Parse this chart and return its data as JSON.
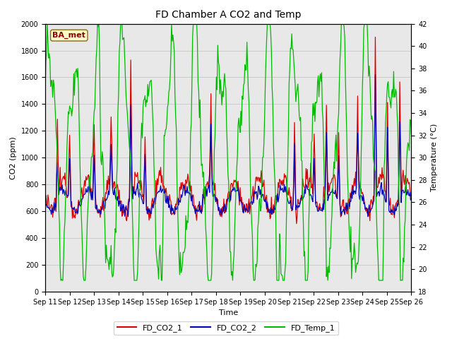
{
  "title": "FD Chamber A CO2 and Temp",
  "xlabel": "Time",
  "ylabel_left": "CO2 (ppm)",
  "ylabel_right": "Temperature (°C)",
  "annotation": "BA_met",
  "legend_labels": [
    "FD_CO2_1",
    "FD_CO2_2",
    "FD_Temp_1"
  ],
  "legend_colors": [
    "#dd0000",
    "#0000bb",
    "#00bb00"
  ],
  "line_colors": [
    "#dd0000",
    "#0000bb",
    "#00bb00"
  ],
  "ylim_left": [
    0,
    2000
  ],
  "ylim_right": [
    18,
    42
  ],
  "yticks_left": [
    0,
    200,
    400,
    600,
    800,
    1000,
    1200,
    1400,
    1600,
    1800,
    2000
  ],
  "yticks_right": [
    18,
    20,
    22,
    24,
    26,
    28,
    30,
    32,
    34,
    36,
    38,
    40,
    42
  ],
  "x_tick_labels": [
    "Sep 11",
    "Sep 12",
    "Sep 13",
    "Sep 14",
    "Sep 15",
    "Sep 16",
    "Sep 17",
    "Sep 18",
    "Sep 19",
    "Sep 20",
    "Sep 21",
    "Sep 22",
    "Sep 23",
    "Sep 24",
    "Sep 25",
    "Sep 26"
  ],
  "grid_color": "#cccccc",
  "plot_bg": "#e8e8e8",
  "fig_bg": "#ffffff",
  "linewidth": 0.9,
  "title_fontsize": 10,
  "label_fontsize": 8,
  "tick_fontsize": 7,
  "legend_fontsize": 8
}
